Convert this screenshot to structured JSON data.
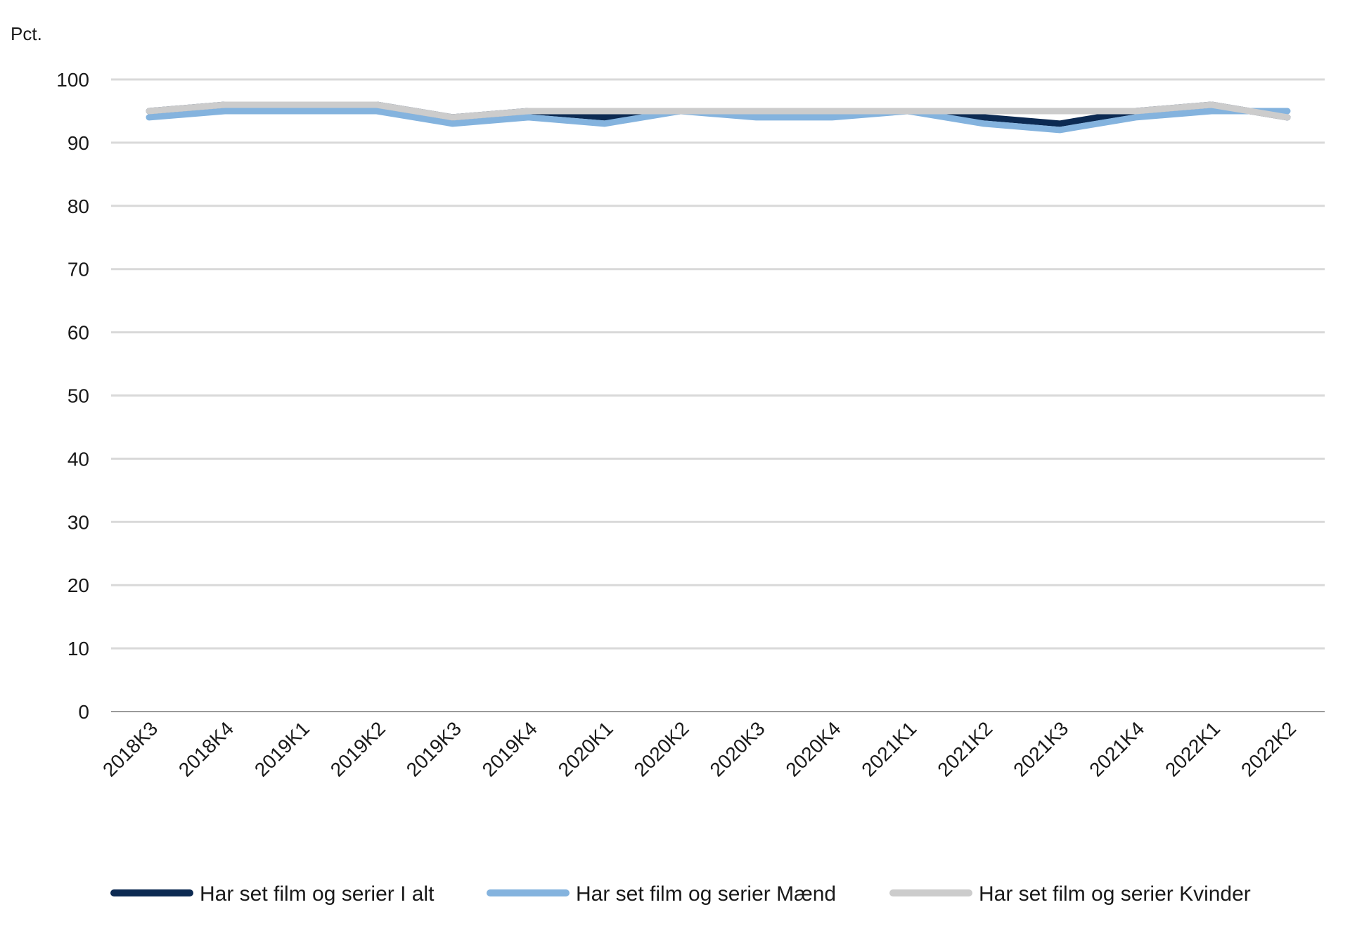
{
  "chart_data": {
    "type": "line",
    "title": "",
    "xlabel": "",
    "ylabel": "Pct.",
    "ylim": [
      0,
      100
    ],
    "yticks": [
      0,
      10,
      20,
      30,
      40,
      50,
      60,
      70,
      80,
      90,
      100
    ],
    "grid": true,
    "legend_position": "bottom",
    "categories": [
      "2018K3",
      "2018K4",
      "2019K1",
      "2019K2",
      "2019K3",
      "2019K4",
      "2020K1",
      "2020K2",
      "2020K3",
      "2020K4",
      "2021K1",
      "2021K2",
      "2021K3",
      "2021K4",
      "2022K1",
      "2022K2"
    ],
    "series": [
      {
        "name": "Har set film og serier I alt",
        "color": "#0c2a52",
        "values": [
          95,
          96,
          96,
          96,
          94,
          95,
          94,
          95,
          95,
          95,
          95,
          94,
          93,
          95,
          96,
          94
        ]
      },
      {
        "name": "Har set film og serier Mænd",
        "color": "#84b3de",
        "values": [
          94,
          95,
          95,
          95,
          93,
          94,
          93,
          95,
          94,
          94,
          95,
          93,
          92,
          94,
          95,
          95
        ]
      },
      {
        "name": "Har set film og serier Kvinder",
        "color": "#cccccc",
        "values": [
          95,
          96,
          96,
          96,
          94,
          95,
          95,
          95,
          95,
          95,
          95,
          95,
          95,
          95,
          96,
          94
        ]
      }
    ]
  }
}
